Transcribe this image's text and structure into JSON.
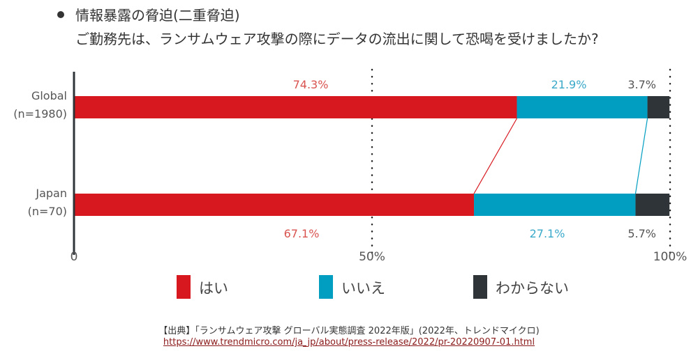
{
  "header": {
    "title": "情報暴露の脅迫(二重脅迫)",
    "question": "ご勤務先は、ランサムウェア攻撃の際にデータの流出に関して恐喝を受けましたか?"
  },
  "colors": {
    "yes": "#d7191f",
    "no": "#019ec2",
    "unknown": "#2f3438",
    "yes_label": "#d9534f",
    "no_label": "#3aa9c9",
    "unknown_label": "#555555",
    "axis": "#2f3438"
  },
  "chart_data": {
    "type": "bar",
    "orientation": "horizontal",
    "stacked": true,
    "normalized": true,
    "title": "ご勤務先は、ランサムウェア攻撃の際にデータの流出に関して恐喝を受けましたか?",
    "categories": [
      "Global\n(n=1980)",
      "Japan\n(n=70)"
    ],
    "category_lines": [
      [
        "Global",
        "(n=1980)"
      ],
      [
        "Japan",
        "(n=70)"
      ]
    ],
    "series": [
      {
        "name": "はい",
        "values": [
          74.3,
          67.1
        ],
        "labels": [
          "74.3%",
          "67.1%"
        ]
      },
      {
        "name": "いいえ",
        "values": [
          21.9,
          27.1
        ],
        "labels": [
          "21.9%",
          "27.1%"
        ]
      },
      {
        "name": "わからない",
        "values": [
          3.7,
          5.7
        ],
        "labels": [
          "3.7%",
          "5.7%"
        ]
      }
    ],
    "xlim": [
      0,
      100
    ],
    "xticks": [
      0,
      50,
      100
    ],
    "xtick_labels": [
      "0",
      "50%",
      "100%"
    ],
    "gridlines": [
      50,
      100
    ],
    "gridline_style": "dotted",
    "connector_lines": true,
    "legend": [
      "はい",
      "いいえ",
      "わからない"
    ],
    "legend_position": "bottom"
  },
  "footer": {
    "source": "【出典】「ランサムウェア攻撃 グローバル実態調査 2022年版」(2022年、トレンドマイクロ)",
    "url": "https://www.trendmicro.com/ja_jp/about/press-release/2022/pr-20220907-01.html"
  }
}
